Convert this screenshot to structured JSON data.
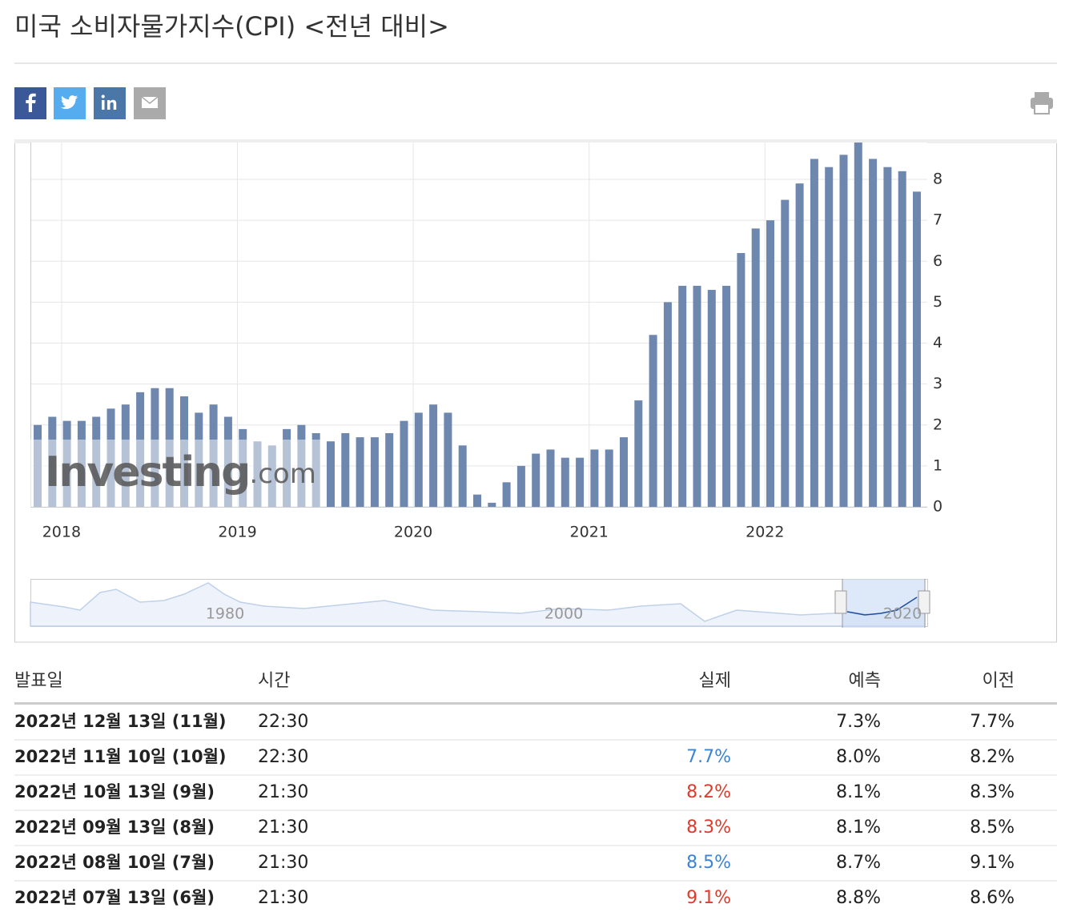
{
  "header": {
    "title": "미국 소비자물가지수(CPI) <전년 대비>"
  },
  "chart_data": {
    "type": "bar",
    "categories": [
      null,
      null,
      null,
      "2018",
      null,
      null,
      null,
      null,
      null,
      null,
      null,
      null,
      null,
      null,
      null,
      "2019",
      null,
      null,
      null,
      null,
      null,
      null,
      null,
      null,
      null,
      null,
      null,
      "2020",
      null,
      null,
      null,
      null,
      null,
      null,
      null,
      null,
      null,
      null,
      null,
      "2021",
      null,
      null,
      null,
      null,
      null,
      null,
      null,
      null,
      null,
      null,
      null,
      "2022",
      null,
      null,
      null,
      null,
      null,
      null,
      null,
      null,
      null
    ],
    "values": [
      2.0,
      2.2,
      2.1,
      2.1,
      2.2,
      2.4,
      2.5,
      2.8,
      2.9,
      2.9,
      2.7,
      2.3,
      2.5,
      2.2,
      1.9,
      1.6,
      1.5,
      1.9,
      2.0,
      1.8,
      1.6,
      1.8,
      1.7,
      1.7,
      1.8,
      2.1,
      2.3,
      2.5,
      2.3,
      1.5,
      0.3,
      0.1,
      0.6,
      1.0,
      1.3,
      1.4,
      1.2,
      1.2,
      1.4,
      1.4,
      1.7,
      2.6,
      4.2,
      5.0,
      5.4,
      5.4,
      5.3,
      5.4,
      6.2,
      6.8,
      7.0,
      7.5,
      7.9,
      8.5,
      8.3,
      8.6,
      9.1,
      8.5,
      8.3,
      8.2,
      7.7
    ],
    "color": "#6d87ae",
    "ylim": [
      0,
      8.9
    ],
    "yticks": [
      0,
      1,
      2,
      3,
      4,
      5,
      6,
      7,
      8
    ],
    "grid": true,
    "watermark": "Investing",
    "watermark_suffix": ".com",
    "navigator_labels": [
      "1980",
      "2000",
      "2020"
    ]
  },
  "table": {
    "headers": [
      "발표일",
      "시간",
      "실제",
      "예측",
      "이전"
    ],
    "rows": [
      {
        "date": "2022년 12월 13일 (11월)",
        "time": "22:30",
        "actual": null,
        "forecast": "7.3%",
        "previous": "7.7%"
      },
      {
        "date": "2022년 11월 10일 (10월)",
        "time": "22:30",
        "actual": "7.7%",
        "actual_color": "#3b84d6",
        "forecast": "8.0%",
        "previous": "8.2%"
      },
      {
        "date": "2022년 10월 13일 (9월)",
        "time": "21:30",
        "actual": "8.2%",
        "actual_color": "#e03a2c",
        "forecast": "8.1%",
        "previous": "8.3%"
      },
      {
        "date": "2022년 09월 13일 (8월)",
        "time": "21:30",
        "actual": "8.3%",
        "actual_color": "#e03a2c",
        "forecast": "8.1%",
        "previous": "8.5%"
      },
      {
        "date": "2022년 08월 10일 (7월)",
        "time": "21:30",
        "actual": "8.5%",
        "actual_color": "#3b84d6",
        "forecast": "8.7%",
        "previous": "9.1%"
      },
      {
        "date": "2022년 07월 13일 (6월)",
        "time": "21:30",
        "actual": "9.1%",
        "actual_color": "#e03a2c",
        "forecast": "8.8%",
        "previous": "8.6%"
      }
    ]
  }
}
